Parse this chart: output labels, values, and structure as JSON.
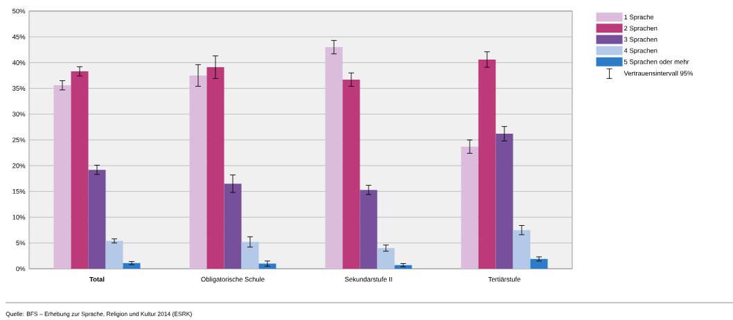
{
  "chart_data": {
    "type": "bar",
    "categories": [
      "**Total**",
      "Obligatorische Schule",
      "Sekundarstufe II",
      "Tertiärstufe"
    ],
    "series": [
      {
        "name": "1 Sprache",
        "color": "#dcbcdc",
        "values": [
          35.6,
          37.5,
          43.0,
          23.7
        ],
        "errors": [
          0.9,
          2.1,
          1.3,
          1.3
        ]
      },
      {
        "name": "2 Sprachen",
        "color": "#bc3a7a",
        "values": [
          38.3,
          39.1,
          36.7,
          40.6
        ],
        "errors": [
          0.9,
          2.2,
          1.3,
          1.5
        ]
      },
      {
        "name": "3 Sprachen",
        "color": "#77509c",
        "values": [
          19.2,
          16.5,
          15.3,
          26.2
        ],
        "errors": [
          0.9,
          1.7,
          0.9,
          1.4
        ]
      },
      {
        "name": "4 Sprachen",
        "color": "#b4c8e8",
        "values": [
          5.4,
          5.2,
          4.0,
          7.5
        ],
        "errors": [
          0.4,
          1.0,
          0.6,
          0.9
        ]
      },
      {
        "name": "5 Sprachen oder mehr",
        "color": "#2e7cc8",
        "values": [
          1.1,
          1.0,
          0.7,
          1.9
        ],
        "errors": [
          0.3,
          0.5,
          0.3,
          0.4
        ]
      }
    ],
    "ylim": [
      0,
      50
    ],
    "yticks": [
      {
        "value": 0,
        "label": "0%"
      },
      {
        "value": 5,
        "label": "5%"
      },
      {
        "value": 10,
        "label": "10%"
      },
      {
        "value": 15,
        "label": "15%"
      },
      {
        "value": 20,
        "label": "20%"
      },
      {
        "value": 25,
        "label": "25%"
      },
      {
        "value": 30,
        "label": "30%"
      },
      {
        "value": 35,
        "label": "35%"
      },
      {
        "value": 40,
        "label": "40%"
      },
      {
        "value": 45,
        "label": "45%"
      },
      {
        "value": 50,
        "label": "50%"
      }
    ],
    "grid": "y",
    "legend": "top right",
    "annotations": [
      "Vertrauensintervall 95%",
      "Quelle: BFS – Erhebung zur Sprache, Religion und Kultur 2014 (ESRK)"
    ]
  }
}
